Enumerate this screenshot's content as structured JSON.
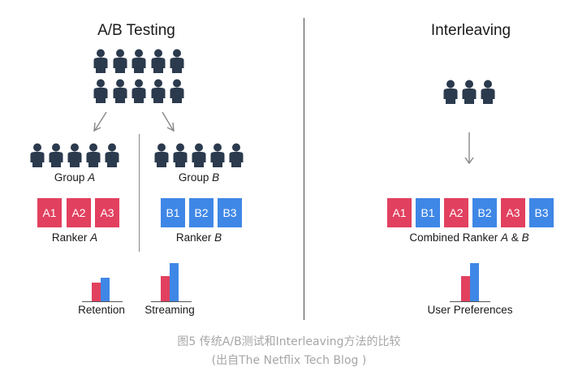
{
  "ab": {
    "title": "A/B Testing",
    "group_a_word": "Group",
    "group_a_letter": "A",
    "group_b_word": "Group",
    "group_b_letter": "B",
    "ranker_a_word": "Ranker",
    "ranker_a_letter": "A",
    "ranker_b_word": "Ranker",
    "ranker_b_letter": "B",
    "tiles_a": [
      "A1",
      "A2",
      "A3"
    ],
    "tiles_b": [
      "B1",
      "B2",
      "B3"
    ],
    "metric_a": "Retention",
    "metric_b": "Streaming"
  },
  "interleaving": {
    "title": "Interleaving",
    "tiles": [
      "A1",
      "B1",
      "A2",
      "B2",
      "A3",
      "B3"
    ],
    "combined_word": "Combined Ranker",
    "combined_a": "A",
    "combined_amp": "&",
    "combined_b": "B",
    "metric": "User Preferences"
  },
  "bars": {
    "retention": {
      "a": 0.24,
      "b": 0.3
    },
    "streaming": {
      "a": 0.32,
      "b": 0.48
    },
    "preferences": {
      "a": 0.32,
      "b": 0.48
    }
  },
  "colors": {
    "a": "#e2405f",
    "b": "#3f87e6",
    "person": "#2b3a4d"
  },
  "caption": {
    "line1": "图5 传统A/B测试和Interleaving方法的比较",
    "line2": "(出自The Netflix Tech Blog )"
  }
}
